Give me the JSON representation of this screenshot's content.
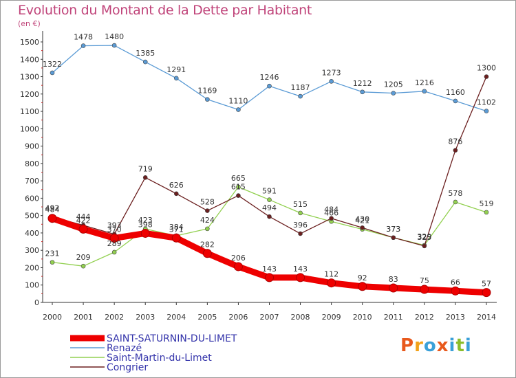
{
  "title": "Evolution du Montant de la Dette par Habitant",
  "unit": "(en €)",
  "logo": {
    "text": "Proxiti",
    "colors": [
      "#e8591c",
      "#f2a21a",
      "#3aa0d8",
      "#e8591c",
      "#3aa0d8",
      "#8bbd2a",
      "#3aa0d8"
    ]
  },
  "chart_data": {
    "type": "line",
    "x": [
      "2000",
      "2001",
      "2002",
      "2003",
      "2004",
      "2005",
      "2006",
      "2007",
      "2008",
      "2009",
      "2010",
      "2011",
      "2012",
      "2013",
      "2014"
    ],
    "ylim": [
      0,
      1500
    ],
    "yticks": [
      0,
      100,
      200,
      300,
      400,
      500,
      600,
      700,
      800,
      900,
      1000,
      1100,
      1200,
      1300,
      1400,
      1500
    ],
    "grid": false,
    "legend_position": "bottom-left",
    "series": [
      {
        "name": "SAINT-SATURNIN-DU-LIMET",
        "color": "#ee0000",
        "values": [
          484,
          422,
          370,
          398,
          371,
          282,
          206,
          143,
          143,
          112,
          92,
          83,
          75,
          66,
          57
        ]
      },
      {
        "name": "Renazé",
        "color": "#5b9bd5",
        "values": [
          1322,
          1478,
          1480,
          1385,
          1291,
          1169,
          1110,
          1246,
          1187,
          1273,
          1212,
          1205,
          1216,
          1160,
          1102
        ]
      },
      {
        "name": "Saint-Martin-du-Limet",
        "color": "#92d050",
        "values": [
          231,
          209,
          289,
          423,
          384,
          424,
          665,
          591,
          515,
          466,
          421,
          373,
          329,
          578,
          519
        ]
      },
      {
        "name": "Congrier",
        "color": "#6b1f1f",
        "values": [
          492,
          444,
          393,
          719,
          626,
          528,
          615,
          494,
          396,
          484,
          430,
          373,
          325,
          876,
          1300
        ]
      }
    ],
    "point_labels": {
      "SAINT-SATURNIN-DU-LIMET": [
        "484",
        "422",
        "370",
        "398",
        "371",
        "282",
        "206",
        "143",
        "143",
        "112",
        "92",
        "83",
        "75",
        "66",
        "57"
      ],
      "Renazé": [
        "1322",
        "1478",
        "1480",
        "1385",
        "1291",
        "1169",
        "1110",
        "1246",
        "1187",
        "1273",
        "1212",
        "1205",
        "1216",
        "1160",
        "1102"
      ],
      "Saint-Martin-du-Limet": [
        "231",
        "209",
        "289",
        "423",
        "384",
        "424",
        "665",
        "591",
        "515",
        "466",
        "421",
        "373",
        "329",
        "578",
        "519"
      ],
      "Congrier": [
        "492",
        "444",
        "393",
        "719",
        "626",
        "528",
        "615",
        "494",
        "396",
        "484",
        "430",
        "373",
        "325",
        "876",
        "1300"
      ]
    }
  }
}
